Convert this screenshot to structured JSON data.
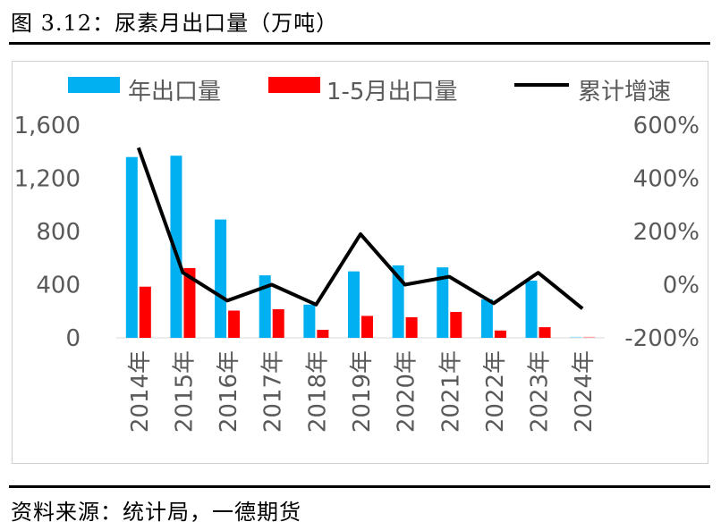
{
  "figure_title": "图 3.12：尿素月出口量（万吨）",
  "source_note": "资料来源：统计局，一德期货",
  "colors": {
    "annual": "#00b0f0",
    "jan_may": "#ff0000",
    "growth": "#000000",
    "axis_text": "#595959"
  },
  "chart_data": {
    "type": "bar",
    "title": "尿素月出口量（万吨）",
    "categories": [
      "2014年",
      "2015年",
      "2016年",
      "2017年",
      "2018年",
      "2019年",
      "2020年",
      "2021年",
      "2022年",
      "2023年",
      "2024年"
    ],
    "series": [
      {
        "name": "年出口量",
        "axis": "left",
        "kind": "bar",
        "values": [
          1360,
          1370,
          890,
          470,
          250,
          500,
          545,
          530,
          290,
          430,
          8
        ]
      },
      {
        "name": "1-5月出口量",
        "axis": "left",
        "kind": "bar",
        "values": [
          385,
          525,
          205,
          215,
          60,
          165,
          155,
          195,
          55,
          80,
          8
        ]
      },
      {
        "name": "累计增速",
        "axis": "right",
        "kind": "line",
        "unit": "%",
        "values": [
          515,
          45,
          -60,
          0,
          -75,
          190,
          0,
          30,
          -70,
          45,
          -90
        ]
      }
    ],
    "y_left": {
      "min": 0,
      "max": 1600,
      "ticks": [
        0,
        400,
        800,
        1200,
        1600
      ],
      "tick_labels": [
        "0",
        "400",
        "800",
        "1,200",
        "1,600"
      ]
    },
    "y_right": {
      "min": -200,
      "max": 600,
      "ticks": [
        -200,
        0,
        200,
        400,
        600
      ],
      "tick_labels": [
        "-200%",
        "0%",
        "200%",
        "400%",
        "600%"
      ]
    },
    "legend": [
      "年出口量",
      "1-5月出口量",
      "累计增速"
    ],
    "legend_position": "top",
    "grid": false
  }
}
